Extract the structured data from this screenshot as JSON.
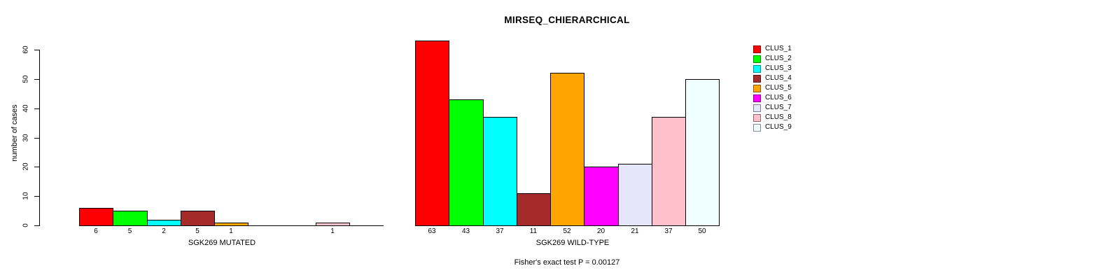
{
  "chart_data": {
    "type": "bar",
    "title": "MIRSEQ_CHIERARCHICAL",
    "ylabel": "number of cases",
    "ylim": [
      0,
      63
    ],
    "yticks": [
      0,
      10,
      20,
      30,
      40,
      50,
      60
    ],
    "grid": false,
    "legend_position": "right",
    "categories": [
      "CLUS_1",
      "CLUS_2",
      "CLUS_3",
      "CLUS_4",
      "CLUS_5",
      "CLUS_6",
      "CLUS_7",
      "CLUS_8",
      "CLUS_9"
    ],
    "colors": [
      "#FF0000",
      "#00FF00",
      "#00FFFF",
      "#A52A2A",
      "#FFA500",
      "#FF00FF",
      "#E6E6FA",
      "#FFC0CB",
      "#F0FFFF"
    ],
    "panels": [
      {
        "xlabel": "SGK269 MUTATED",
        "values": [
          6,
          5,
          2,
          5,
          1,
          0,
          0,
          1,
          0
        ],
        "bar_labels": [
          "6",
          "5",
          "2",
          "5",
          "1",
          "",
          "",
          "1",
          ""
        ]
      },
      {
        "xlabel": "SGK269 WILD-TYPE",
        "values": [
          63,
          43,
          37,
          11,
          52,
          20,
          21,
          37,
          50
        ],
        "bar_labels": [
          "63",
          "43",
          "37",
          "11",
          "52",
          "20",
          "21",
          "37",
          "50"
        ]
      }
    ],
    "annotation": "Fisher's exact test P = 0.00127"
  },
  "legend": {
    "entries": [
      {
        "label": "CLUS_1",
        "color": "#FF0000"
      },
      {
        "label": "CLUS_2",
        "color": "#00FF00"
      },
      {
        "label": "CLUS_3",
        "color": "#00FFFF"
      },
      {
        "label": "CLUS_4",
        "color": "#A52A2A"
      },
      {
        "label": "CLUS_5",
        "color": "#FFA500"
      },
      {
        "label": "CLUS_6",
        "color": "#FF00FF"
      },
      {
        "label": "CLUS_7",
        "color": "#E6E6FA"
      },
      {
        "label": "CLUS_8",
        "color": "#FFC0CB"
      },
      {
        "label": "CLUS_9",
        "color": "#F0FFFF"
      }
    ]
  }
}
